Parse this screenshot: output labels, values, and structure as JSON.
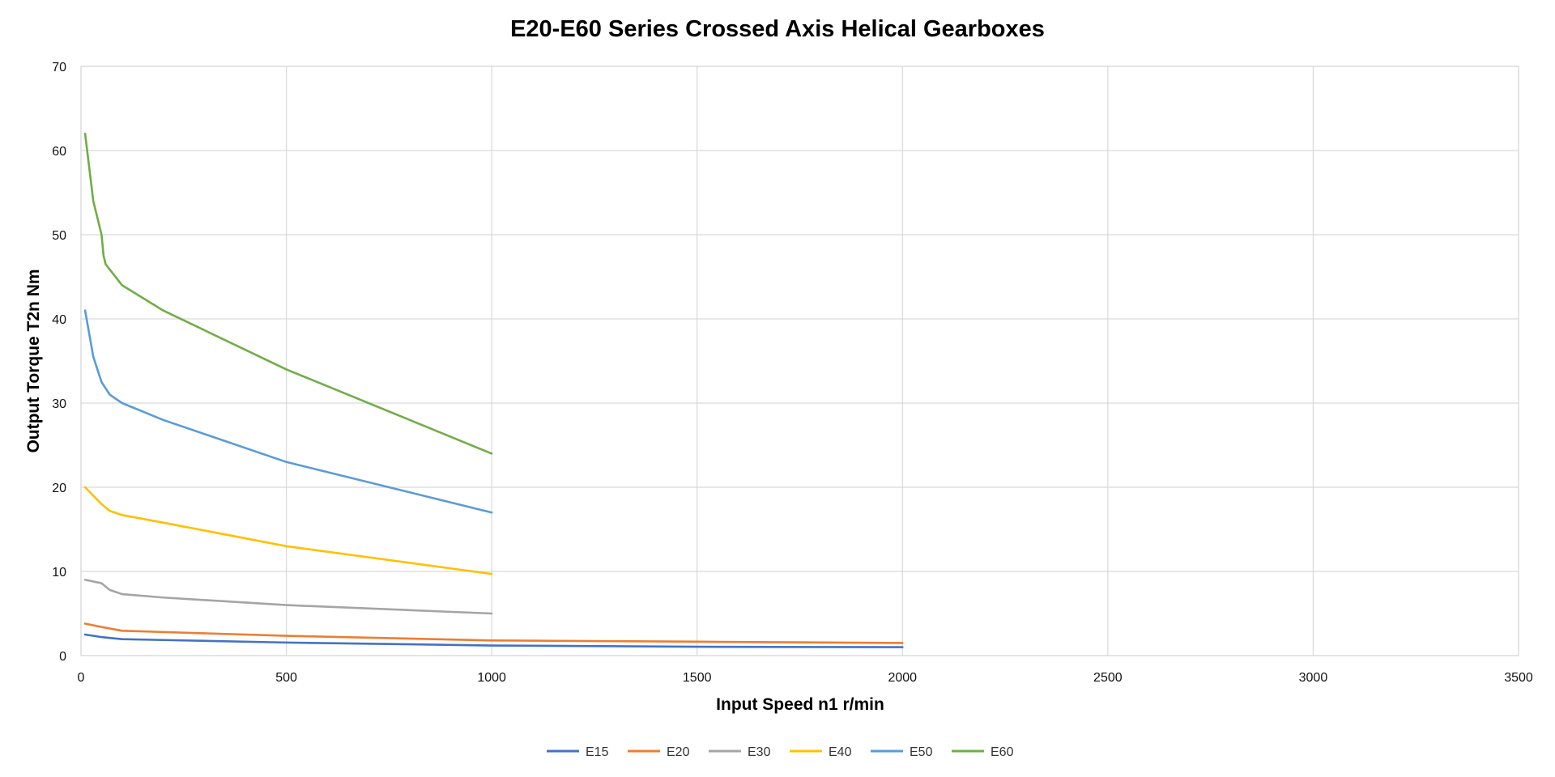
{
  "chart_data": {
    "type": "line",
    "title": "E20-E60 Series Crossed Axis Helical Gearboxes",
    "xlabel": "Input Speed n1 r/min",
    "ylabel": "Output Torque T2n Nm",
    "xlim": [
      0,
      3500
    ],
    "ylim": [
      0,
      70
    ],
    "x_ticks": [
      "0",
      "500",
      "1000",
      "1500",
      "2000",
      "2500",
      "3000",
      "3500"
    ],
    "y_ticks": [
      "0",
      "10",
      "20",
      "30",
      "40",
      "50",
      "60",
      "70"
    ],
    "grid": true,
    "legend_position": "bottom",
    "series": [
      {
        "name": "E15",
        "color": "#4472c4",
        "x": [
          10,
          50,
          100,
          200,
          500,
          1000,
          1500,
          2000
        ],
        "y": [
          2.5,
          2.2,
          1.95,
          1.85,
          1.55,
          1.2,
          1.05,
          1.0
        ]
      },
      {
        "name": "E20",
        "color": "#ed7d31",
        "x": [
          10,
          50,
          100,
          200,
          500,
          1000,
          1500,
          2000
        ],
        "y": [
          3.8,
          3.4,
          2.95,
          2.8,
          2.35,
          1.8,
          1.65,
          1.5
        ]
      },
      {
        "name": "E30",
        "color": "#a5a5a5",
        "x": [
          10,
          50,
          70,
          100,
          200,
          500,
          1000
        ],
        "y": [
          9.0,
          8.6,
          7.8,
          7.3,
          6.9,
          6.0,
          5.0
        ]
      },
      {
        "name": "E40",
        "color": "#ffc000",
        "x": [
          10,
          50,
          70,
          100,
          200,
          500,
          1000
        ],
        "y": [
          20.0,
          18.0,
          17.2,
          16.7,
          15.8,
          13.0,
          9.7
        ]
      },
      {
        "name": "E50",
        "color": "#5b9bd5",
        "x": [
          10,
          30,
          50,
          70,
          100,
          200,
          500,
          1000
        ],
        "y": [
          41.0,
          35.5,
          32.5,
          31.0,
          30.0,
          28.0,
          23.0,
          17.0
        ]
      },
      {
        "name": "E60",
        "color": "#70ad47",
        "x": [
          10,
          30,
          50,
          55,
          60,
          100,
          200,
          500,
          1000
        ],
        "y": [
          62.0,
          54.0,
          50.0,
          47.5,
          46.5,
          44.0,
          41.0,
          34.0,
          24.0
        ]
      }
    ]
  }
}
